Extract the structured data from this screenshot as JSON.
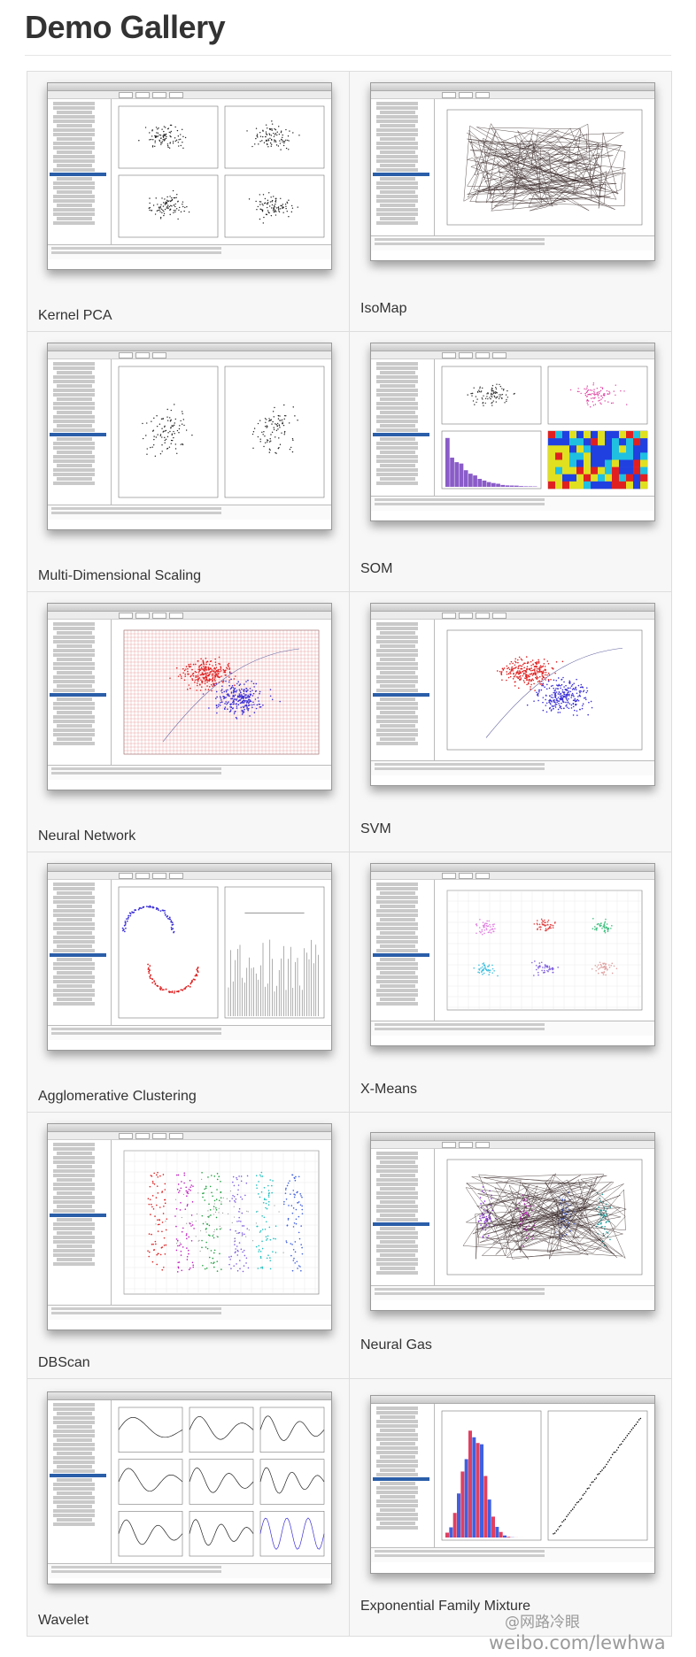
{
  "page": {
    "title": "Demo Gallery"
  },
  "gallery": [
    {
      "caption": "Kernel PCA",
      "kind": "kpca"
    },
    {
      "caption": "IsoMap",
      "kind": "isomap"
    },
    {
      "caption": "Multi-Dimensional Scaling",
      "kind": "mds"
    },
    {
      "caption": "SOM",
      "kind": "som"
    },
    {
      "caption": "Neural Network",
      "kind": "nn"
    },
    {
      "caption": "SVM",
      "kind": "svm"
    },
    {
      "caption": "Agglomerative Clustering",
      "kind": "agg"
    },
    {
      "caption": "X-Means",
      "kind": "xmeans"
    },
    {
      "caption": "DBScan",
      "kind": "dbscan"
    },
    {
      "caption": "Neural Gas",
      "kind": "ngas"
    },
    {
      "caption": "Wavelet",
      "kind": "wavelet"
    },
    {
      "caption": "Exponential Family Mixture",
      "kind": "expmix"
    }
  ],
  "watermark": {
    "handle": "@网路冷眼",
    "url": "weibo.com/lewhwa"
  },
  "colors": {
    "selection": "#2a5ea8",
    "red": "#e02020",
    "blue": "#3b2fd6"
  }
}
